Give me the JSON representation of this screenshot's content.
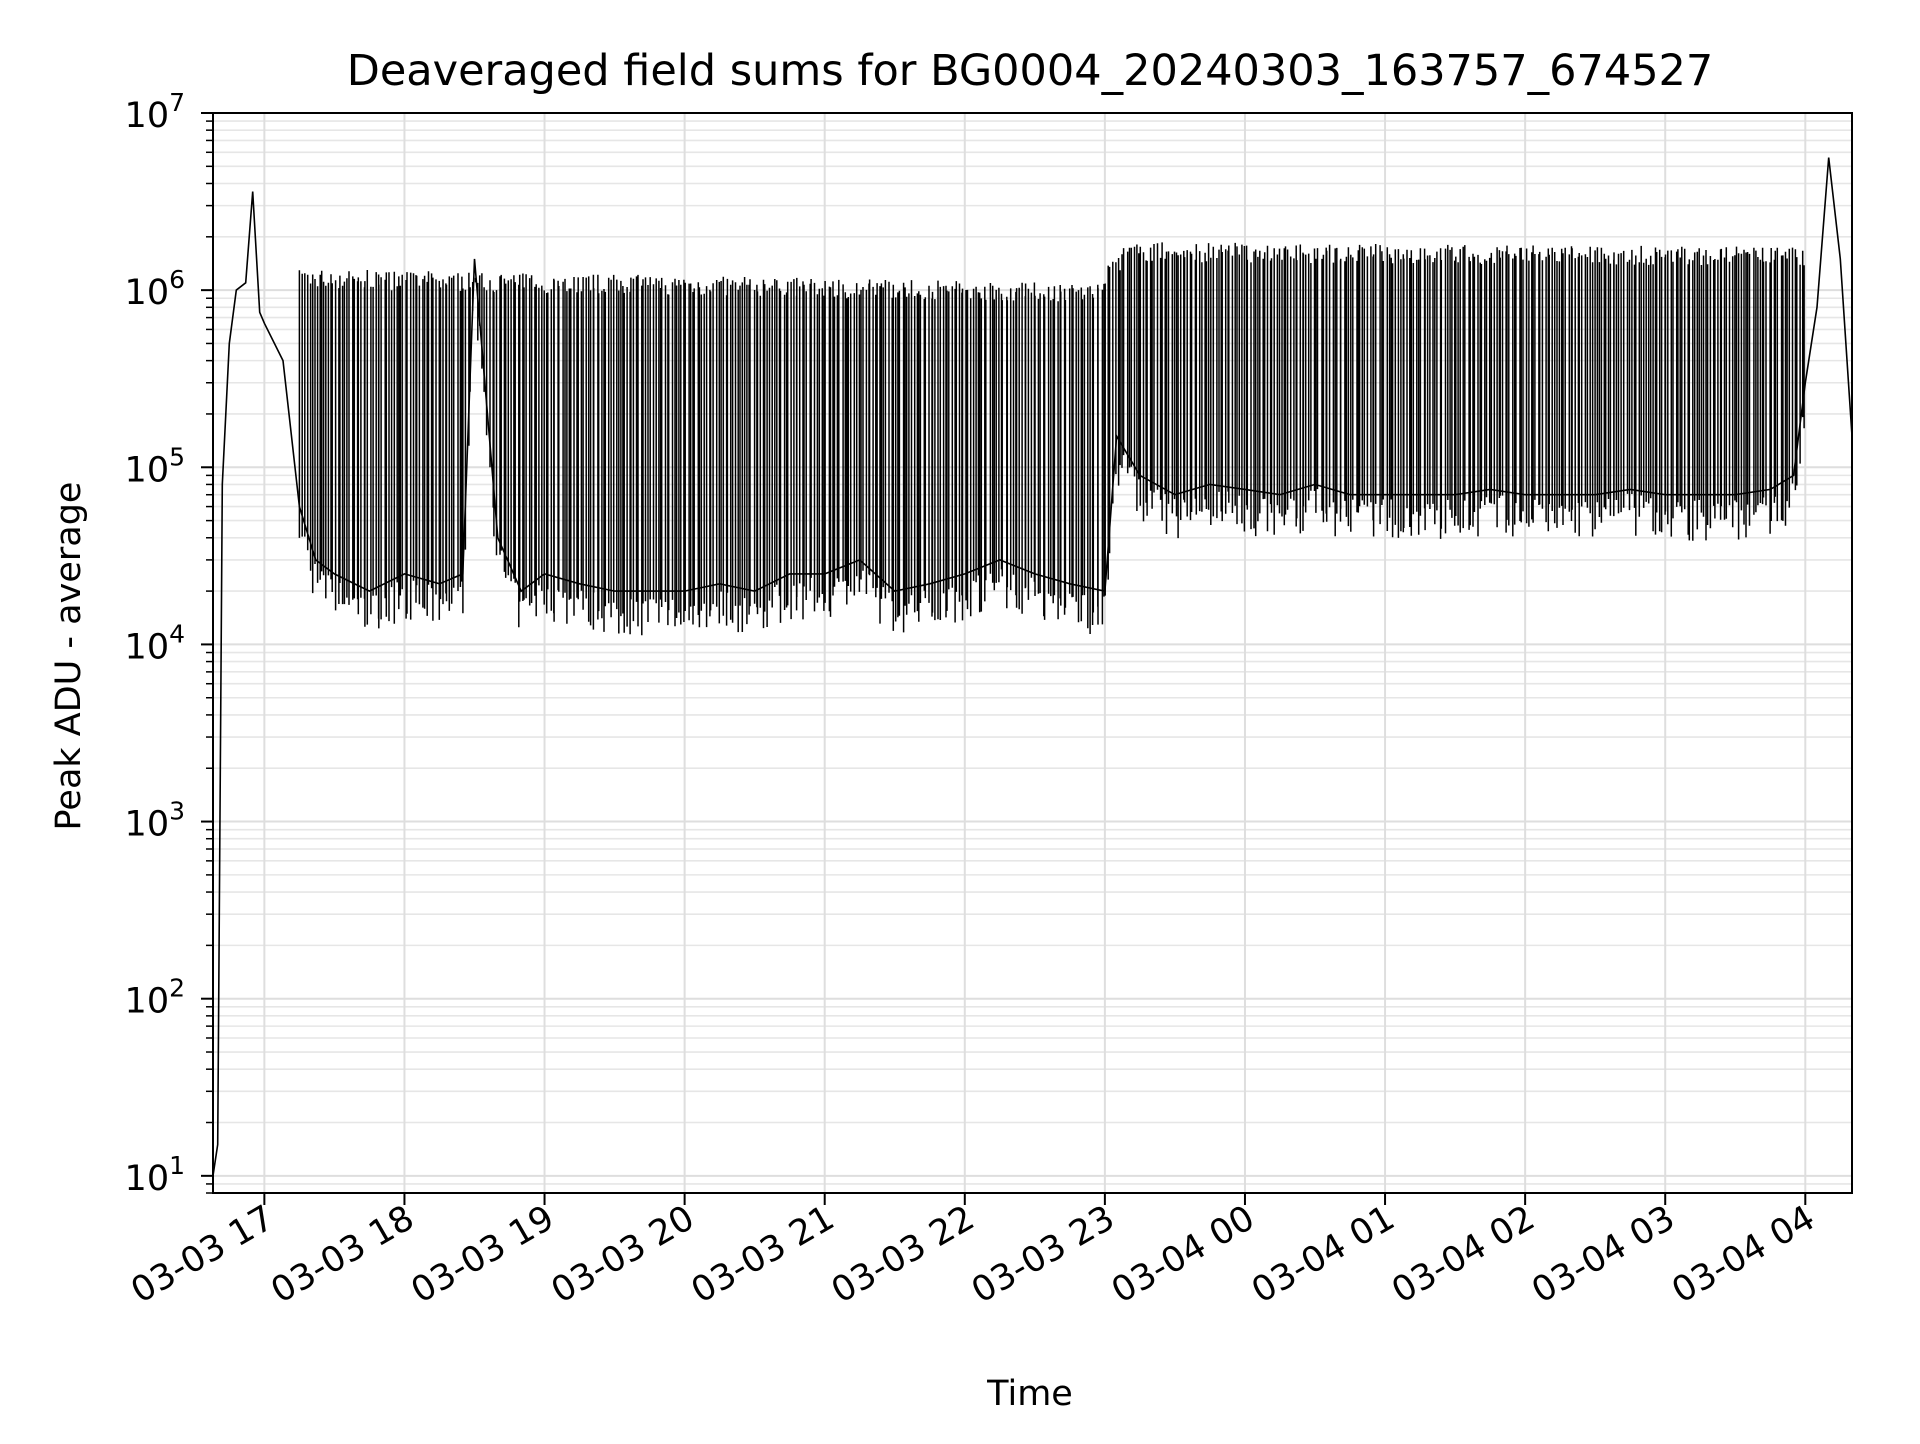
{
  "chart_data": {
    "type": "line",
    "title": "Deaveraged field sums for BG0004_20240303_163757_674527",
    "xlabel": "Time",
    "ylabel": "Peak ADU - average",
    "yscale": "log",
    "ylim": [
      8,
      10000000
    ],
    "xlim": [
      "2024-03-03 16:38",
      "2024-03-04 04:20"
    ],
    "grid": true,
    "x_ticks": [
      {
        "value": "2024-03-03 17:00",
        "label": "03-03 17"
      },
      {
        "value": "2024-03-03 18:00",
        "label": "03-03 18"
      },
      {
        "value": "2024-03-03 19:00",
        "label": "03-03 19"
      },
      {
        "value": "2024-03-03 20:00",
        "label": "03-03 20"
      },
      {
        "value": "2024-03-03 21:00",
        "label": "03-03 21"
      },
      {
        "value": "2024-03-03 22:00",
        "label": "03-03 22"
      },
      {
        "value": "2024-03-03 23:00",
        "label": "03-03 23"
      },
      {
        "value": "2024-03-04 00:00",
        "label": "03-04 00"
      },
      {
        "value": "2024-03-04 01:00",
        "label": "03-04 01"
      },
      {
        "value": "2024-03-04 02:00",
        "label": "03-04 02"
      },
      {
        "value": "2024-03-04 03:00",
        "label": "03-04 03"
      },
      {
        "value": "2024-03-04 04:00",
        "label": "03-04 04"
      }
    ],
    "y_ticks": [
      {
        "value": 10,
        "base": "10",
        "exp": "1"
      },
      {
        "value": 100,
        "base": "10",
        "exp": "2"
      },
      {
        "value": 1000,
        "base": "10",
        "exp": "3"
      },
      {
        "value": 10000,
        "base": "10",
        "exp": "4"
      },
      {
        "value": 100000,
        "base": "10",
        "exp": "5"
      },
      {
        "value": 1000000,
        "base": "10",
        "exp": "6"
      },
      {
        "value": 10000000,
        "base": "10",
        "exp": "7"
      }
    ],
    "series": [
      {
        "color": "#000000",
        "x": [
          "2024-03-03 16:38",
          "2024-03-03 16:40",
          "2024-03-03 16:42",
          "2024-03-03 16:45",
          "2024-03-03 16:48",
          "2024-03-03 16:52",
          "2024-03-03 16:55",
          "2024-03-03 16:58",
          "2024-03-03 17:00",
          "2024-03-03 17:08",
          "2024-03-03 17:15",
          "2024-03-03 17:22",
          "2024-03-03 17:30",
          "2024-03-03 17:45",
          "2024-03-03 18:00",
          "2024-03-03 18:15",
          "2024-03-03 18:25",
          "2024-03-03 18:30",
          "2024-03-03 18:40",
          "2024-03-03 18:50",
          "2024-03-03 19:00",
          "2024-03-03 19:15",
          "2024-03-03 19:30",
          "2024-03-03 19:45",
          "2024-03-03 20:00",
          "2024-03-03 20:15",
          "2024-03-03 20:30",
          "2024-03-03 20:45",
          "2024-03-03 21:00",
          "2024-03-03 21:15",
          "2024-03-03 21:30",
          "2024-03-03 21:45",
          "2024-03-03 22:00",
          "2024-03-03 22:15",
          "2024-03-03 22:30",
          "2024-03-03 22:45",
          "2024-03-03 23:00",
          "2024-03-03 23:05",
          "2024-03-03 23:15",
          "2024-03-03 23:30",
          "2024-03-03 23:45",
          "2024-03-04 00:00",
          "2024-03-04 00:15",
          "2024-03-04 00:30",
          "2024-03-04 00:45",
          "2024-03-04 01:00",
          "2024-03-04 01:15",
          "2024-03-04 01:30",
          "2024-03-04 01:45",
          "2024-03-04 02:00",
          "2024-03-04 02:15",
          "2024-03-04 02:30",
          "2024-03-04 02:45",
          "2024-03-04 03:00",
          "2024-03-04 03:15",
          "2024-03-04 03:30",
          "2024-03-04 03:45",
          "2024-03-04 03:55",
          "2024-03-04 04:00",
          "2024-03-04 04:05",
          "2024-03-04 04:10",
          "2024-03-04 04:15",
          "2024-03-04 04:20"
        ],
        "y": [
          10,
          15,
          80000,
          500000,
          1000000,
          1100000,
          3600000,
          750000,
          650000,
          400000,
          60000,
          30000,
          25000,
          20000,
          25000,
          22000,
          25000,
          1500000,
          40000,
          20000,
          25000,
          22000,
          20000,
          20000,
          20000,
          22000,
          20000,
          25000,
          25000,
          30000,
          20000,
          22000,
          25000,
          30000,
          25000,
          22000,
          20000,
          150000,
          90000,
          70000,
          80000,
          75000,
          70000,
          80000,
          70000,
          70000,
          70000,
          70000,
          75000,
          70000,
          70000,
          70000,
          75000,
          70000,
          70000,
          70000,
          75000,
          90000,
          300000,
          800000,
          5600000,
          1500000,
          150000
        ],
        "burst": {
          "x_range": [
            "2024-03-03 17:15",
            "2024-03-04 04:00"
          ],
          "count_per_hour": 60,
          "peaks": [
            {
              "x": "2024-03-03 17:15",
              "y": 1200000
            },
            {
              "x": "2024-03-03 22:55",
              "y": 1000000
            },
            {
              "x": "2024-03-03 23:10",
              "y": 1700000
            },
            {
              "x": "2024-03-04 04:00",
              "y": 1600000
            }
          ]
        }
      }
    ]
  }
}
